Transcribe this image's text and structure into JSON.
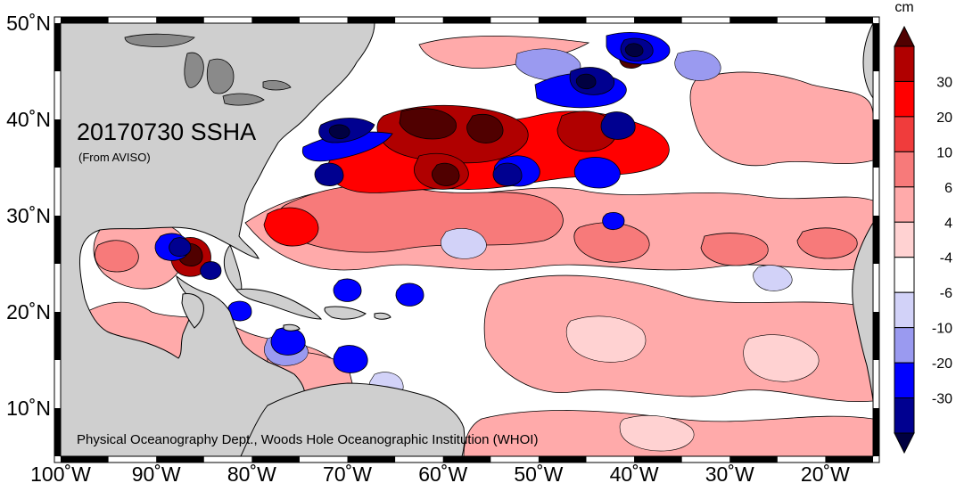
{
  "map": {
    "title": "20170730 SSHA",
    "source": "(From AVISO)",
    "credit": "Physical Oceanography Dept., Woods Hole Oceanographic Institution (WHOI)",
    "lon_range": [
      -100,
      -15
    ],
    "lat_range": [
      5,
      50
    ],
    "lon_ticks": [
      {
        "value": -100,
        "label": "100˚W"
      },
      {
        "value": -90,
        "label": "90˚W"
      },
      {
        "value": -80,
        "label": "80˚W"
      },
      {
        "value": -70,
        "label": "70˚W"
      },
      {
        "value": -60,
        "label": "60˚W"
      },
      {
        "value": -50,
        "label": "50˚W"
      },
      {
        "value": -40,
        "label": "40˚W"
      },
      {
        "value": -30,
        "label": "30˚W"
      },
      {
        "value": -20,
        "label": "20˚W"
      }
    ],
    "lat_ticks": [
      {
        "value": 50,
        "label": "50˚N"
      },
      {
        "value": 40,
        "label": "40˚N"
      },
      {
        "value": 30,
        "label": "30˚N"
      },
      {
        "value": 20,
        "label": "20˚N"
      },
      {
        "value": 10,
        "label": "10˚N"
      }
    ],
    "colors": {
      "land": "#cfcfcf",
      "ocean_neutral": "#ffffff",
      "pos": [
        "#ffd2d2",
        "#ffaaaa",
        "#f77a7a",
        "#f03c3c",
        "#ff0000",
        "#b00000",
        "#500000"
      ],
      "neg": [
        "#d2d2f8",
        "#9a9af0",
        "#0000ff",
        "#000090",
        "#000040"
      ]
    }
  },
  "colorbar": {
    "unit": "cm",
    "levels": [
      "30",
      "20",
      "10",
      "6",
      "4",
      "-4",
      "-6",
      "-10",
      "-20",
      "-30"
    ],
    "colors": [
      "#500000",
      "#b00000",
      "#ff0000",
      "#f03c3c",
      "#f77a7a",
      "#ffaaaa",
      "#ffd2d2",
      "#ffffff",
      "#d2d2f8",
      "#9a9af0",
      "#0000ff",
      "#000090",
      "#000040"
    ]
  }
}
